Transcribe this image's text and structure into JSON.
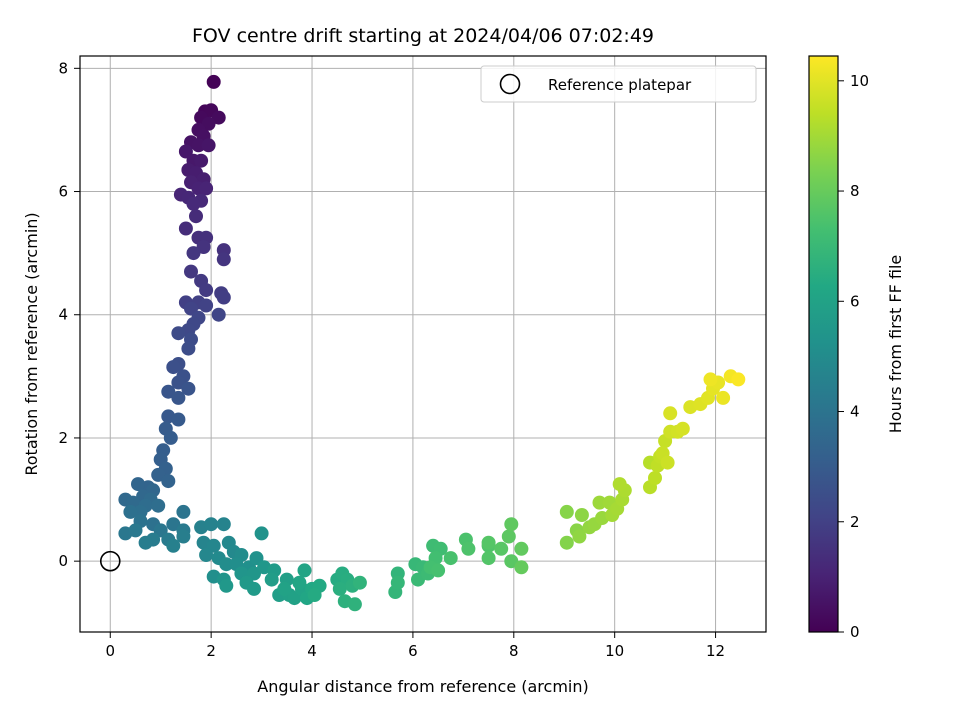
{
  "chart_data": {
    "type": "scatter",
    "title": "FOV centre drift starting at 2024/04/06 07:02:49",
    "xlabel": "Angular distance from reference (arcmin)",
    "ylabel": "Rotation from reference (arcmin)",
    "xlim": [
      -0.6,
      13.0
    ],
    "ylim": [
      -1.15,
      8.2
    ],
    "xticks": [
      "0",
      "2",
      "4",
      "6",
      "8",
      "10",
      "12"
    ],
    "yticks": [
      "0",
      "2",
      "4",
      "6",
      "8"
    ],
    "grid": true,
    "legend": {
      "placement": "top-right",
      "entries": [
        "Reference platepar"
      ]
    },
    "reference_point": {
      "x": 0,
      "y": 0
    },
    "colorbar": {
      "label": "Hours from first FF file",
      "range": [
        0,
        10.45
      ],
      "ticks": [
        "0",
        "2",
        "4",
        "6",
        "8",
        "10"
      ],
      "colormap": "viridis"
    },
    "series": [
      {
        "points": [
          [
            2.05,
            7.78,
            0.05
          ],
          [
            1.88,
            7.3,
            0.15
          ],
          [
            2.0,
            7.32,
            0.2
          ],
          [
            1.8,
            7.2,
            0.25
          ],
          [
            2.15,
            7.2,
            0.3
          ],
          [
            1.95,
            7.1,
            0.35
          ],
          [
            1.75,
            7.0,
            0.4
          ],
          [
            1.85,
            6.9,
            0.45
          ],
          [
            1.6,
            6.8,
            0.5
          ],
          [
            1.75,
            6.75,
            0.55
          ],
          [
            1.95,
            6.75,
            0.6
          ],
          [
            1.5,
            6.65,
            0.65
          ],
          [
            1.65,
            6.5,
            0.7
          ],
          [
            1.8,
            6.5,
            0.75
          ],
          [
            1.55,
            6.35,
            0.8
          ],
          [
            1.7,
            6.3,
            0.85
          ],
          [
            1.85,
            6.2,
            0.9
          ],
          [
            1.6,
            6.15,
            0.95
          ],
          [
            1.75,
            6.05,
            1.0
          ],
          [
            1.9,
            6.05,
            1.05
          ],
          [
            1.4,
            5.95,
            1.1
          ],
          [
            1.55,
            5.9,
            1.15
          ],
          [
            1.8,
            5.85,
            1.2
          ],
          [
            1.65,
            5.8,
            1.25
          ],
          [
            1.7,
            5.6,
            1.3
          ],
          [
            1.5,
            5.4,
            1.35
          ],
          [
            1.75,
            5.25,
            1.4
          ],
          [
            1.9,
            5.25,
            1.45
          ],
          [
            2.25,
            5.05,
            1.5
          ],
          [
            1.85,
            5.1,
            1.55
          ],
          [
            2.25,
            4.9,
            1.6
          ],
          [
            1.65,
            5.0,
            1.65
          ],
          [
            1.6,
            4.7,
            1.7
          ],
          [
            1.8,
            4.55,
            1.75
          ],
          [
            1.9,
            4.4,
            1.8
          ],
          [
            2.2,
            4.35,
            1.85
          ],
          [
            2.25,
            4.28,
            1.9
          ],
          [
            1.5,
            4.2,
            1.95
          ],
          [
            1.75,
            4.2,
            2.0
          ],
          [
            1.9,
            4.15,
            2.05
          ],
          [
            1.6,
            4.1,
            2.1
          ],
          [
            2.15,
            4.0,
            2.15
          ],
          [
            1.75,
            3.95,
            2.2
          ],
          [
            1.65,
            3.85,
            2.25
          ],
          [
            1.55,
            3.75,
            2.3
          ],
          [
            1.35,
            3.7,
            2.35
          ],
          [
            1.6,
            3.6,
            2.4
          ],
          [
            1.55,
            3.45,
            2.45
          ],
          [
            1.35,
            3.2,
            2.5
          ],
          [
            1.25,
            3.15,
            2.55
          ],
          [
            1.45,
            3.0,
            2.6
          ],
          [
            1.35,
            2.9,
            2.65
          ],
          [
            1.55,
            2.8,
            2.7
          ],
          [
            1.15,
            2.75,
            2.75
          ],
          [
            1.35,
            2.65,
            2.8
          ],
          [
            1.15,
            2.35,
            2.9
          ],
          [
            1.35,
            2.3,
            2.95
          ],
          [
            1.1,
            2.15,
            3.0
          ],
          [
            1.2,
            2.0,
            3.05
          ],
          [
            1.05,
            1.8,
            3.1
          ],
          [
            1.0,
            1.65,
            3.15
          ],
          [
            1.1,
            1.5,
            3.2
          ],
          [
            0.95,
            1.4,
            3.25
          ],
          [
            1.15,
            1.3,
            3.3
          ],
          [
            0.75,
            1.2,
            3.35
          ],
          [
            0.55,
            1.25,
            3.4
          ],
          [
            0.85,
            1.15,
            3.45
          ],
          [
            0.65,
            1.05,
            3.5
          ],
          [
            0.3,
            1.0,
            3.55
          ],
          [
            0.45,
            0.95,
            3.6
          ],
          [
            0.8,
            1.0,
            3.65
          ],
          [
            0.7,
            0.9,
            3.7
          ],
          [
            0.95,
            0.9,
            3.75
          ],
          [
            0.6,
            0.8,
            3.8
          ],
          [
            0.4,
            0.8,
            3.85
          ],
          [
            0.85,
            0.6,
            3.9
          ],
          [
            0.6,
            0.65,
            3.95
          ],
          [
            1.45,
            0.8,
            4.0
          ],
          [
            1.25,
            0.6,
            4.05
          ],
          [
            1.0,
            0.5,
            4.1
          ],
          [
            0.3,
            0.45,
            4.15
          ],
          [
            0.5,
            0.5,
            4.2
          ],
          [
            1.45,
            0.5,
            4.25
          ],
          [
            1.15,
            0.35,
            4.3
          ],
          [
            0.85,
            0.35,
            4.35
          ],
          [
            0.7,
            0.3,
            4.4
          ],
          [
            1.45,
            0.4,
            4.45
          ],
          [
            1.25,
            0.25,
            4.5
          ],
          [
            1.8,
            0.55,
            4.55
          ],
          [
            2.0,
            0.6,
            4.6
          ],
          [
            2.25,
            0.6,
            4.65
          ],
          [
            1.85,
            0.3,
            4.7
          ],
          [
            2.05,
            0.25,
            4.75
          ],
          [
            1.9,
            0.1,
            4.8
          ],
          [
            2.35,
            0.3,
            4.85
          ],
          [
            2.45,
            0.15,
            4.9
          ],
          [
            2.15,
            0.05,
            4.95
          ],
          [
            2.6,
            0.1,
            5.0
          ],
          [
            2.3,
            -0.05,
            5.05
          ],
          [
            2.5,
            -0.05,
            5.1
          ],
          [
            2.05,
            -0.25,
            5.15
          ],
          [
            2.75,
            -0.1,
            5.2
          ],
          [
            2.9,
            0.05,
            5.25
          ],
          [
            3.0,
            0.45,
            5.3
          ],
          [
            2.25,
            -0.3,
            5.35
          ],
          [
            2.6,
            -0.2,
            5.4
          ],
          [
            2.85,
            -0.2,
            5.45
          ],
          [
            3.05,
            -0.1,
            5.5
          ],
          [
            2.3,
            -0.4,
            5.55
          ],
          [
            2.7,
            -0.35,
            5.6
          ],
          [
            2.85,
            -0.45,
            5.65
          ],
          [
            3.25,
            -0.15,
            5.7
          ],
          [
            3.2,
            -0.3,
            5.75
          ],
          [
            3.35,
            -0.55,
            5.8
          ],
          [
            3.5,
            -0.3,
            5.85
          ],
          [
            3.55,
            -0.55,
            5.9
          ],
          [
            3.65,
            -0.6,
            5.95
          ],
          [
            3.45,
            -0.45,
            6.0
          ],
          [
            3.8,
            -0.45,
            6.05
          ],
          [
            3.85,
            -0.15,
            6.1
          ],
          [
            3.75,
            -0.35,
            6.15
          ],
          [
            3.9,
            -0.6,
            6.2
          ],
          [
            4.0,
            -0.45,
            6.25
          ],
          [
            4.15,
            -0.4,
            6.3
          ],
          [
            4.05,
            -0.55,
            6.35
          ],
          [
            4.5,
            -0.3,
            6.4
          ],
          [
            4.6,
            -0.2,
            6.45
          ],
          [
            4.7,
            -0.3,
            6.5
          ],
          [
            4.55,
            -0.45,
            6.55
          ],
          [
            4.8,
            -0.4,
            6.6
          ],
          [
            4.65,
            -0.65,
            6.65
          ],
          [
            4.85,
            -0.7,
            6.7
          ],
          [
            4.95,
            -0.35,
            6.75
          ],
          [
            5.7,
            -0.2,
            6.8
          ],
          [
            5.65,
            -0.5,
            6.85
          ],
          [
            5.7,
            -0.35,
            6.9
          ],
          [
            6.05,
            -0.05,
            6.95
          ],
          [
            6.2,
            -0.1,
            7.0
          ],
          [
            6.1,
            -0.3,
            7.05
          ],
          [
            6.3,
            -0.2,
            7.1
          ],
          [
            6.4,
            0.25,
            7.15
          ],
          [
            6.55,
            0.2,
            7.2
          ],
          [
            6.45,
            0.05,
            7.25
          ],
          [
            6.35,
            -0.1,
            7.3
          ],
          [
            6.5,
            -0.15,
            7.35
          ],
          [
            6.75,
            0.05,
            7.4
          ],
          [
            7.05,
            0.35,
            7.45
          ],
          [
            7.1,
            0.2,
            7.5
          ],
          [
            7.5,
            0.25,
            7.55
          ],
          [
            7.5,
            0.05,
            7.6
          ],
          [
            7.5,
            0.3,
            7.65
          ],
          [
            7.75,
            0.2,
            7.7
          ],
          [
            7.95,
            0.0,
            7.75
          ],
          [
            7.9,
            0.4,
            7.8
          ],
          [
            7.95,
            0.6,
            7.85
          ],
          [
            8.15,
            0.2,
            7.9
          ],
          [
            8.15,
            -0.1,
            7.95
          ],
          [
            9.05,
            0.3,
            8.5
          ],
          [
            9.05,
            0.8,
            8.55
          ],
          [
            9.25,
            0.5,
            8.6
          ],
          [
            9.35,
            0.75,
            8.65
          ],
          [
            9.3,
            0.4,
            8.7
          ],
          [
            9.5,
            0.55,
            8.75
          ],
          [
            9.6,
            0.6,
            8.8
          ],
          [
            9.75,
            0.7,
            8.85
          ],
          [
            9.7,
            0.95,
            8.9
          ],
          [
            9.9,
            0.95,
            8.95
          ],
          [
            9.95,
            0.75,
            9.0
          ],
          [
            10.05,
            0.85,
            9.05
          ],
          [
            10.15,
            1.0,
            9.1
          ],
          [
            10.2,
            1.15,
            9.15
          ],
          [
            10.1,
            1.25,
            9.2
          ],
          [
            10.7,
            1.6,
            9.3
          ],
          [
            10.7,
            1.2,
            9.35
          ],
          [
            10.8,
            1.35,
            9.4
          ],
          [
            10.85,
            1.55,
            9.45
          ],
          [
            10.9,
            1.7,
            9.5
          ],
          [
            11.0,
            1.95,
            9.55
          ],
          [
            10.95,
            1.75,
            9.6
          ],
          [
            11.05,
            1.6,
            9.65
          ],
          [
            11.1,
            2.1,
            9.7
          ],
          [
            11.25,
            2.1,
            9.75
          ],
          [
            11.35,
            2.15,
            9.8
          ],
          [
            11.1,
            2.4,
            9.85
          ],
          [
            11.5,
            2.5,
            9.9
          ],
          [
            11.7,
            2.55,
            9.95
          ],
          [
            11.85,
            2.65,
            10.0
          ],
          [
            11.95,
            2.8,
            10.05
          ],
          [
            12.05,
            2.9,
            10.1
          ],
          [
            12.15,
            2.65,
            10.15
          ],
          [
            11.9,
            2.95,
            10.2
          ],
          [
            12.3,
            3.0,
            10.3
          ],
          [
            12.45,
            2.95,
            10.4
          ]
        ]
      }
    ]
  }
}
